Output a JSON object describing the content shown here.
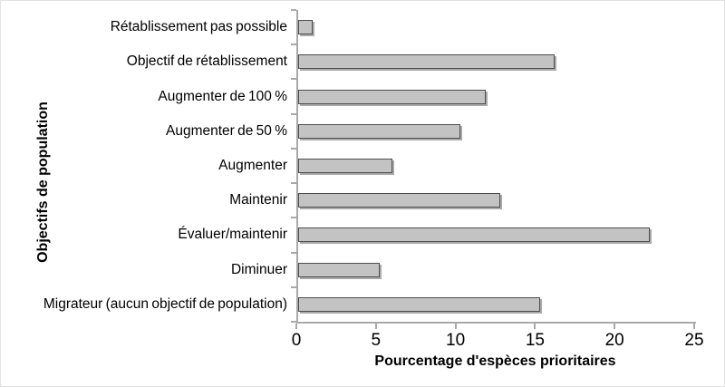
{
  "chart_data": {
    "type": "bar",
    "orientation": "horizontal",
    "title": "",
    "xlabel": "Pourcentage d'espèces prioritaires",
    "ylabel": "Objectifs de population",
    "categories": [
      "Rétablissement pas possible",
      "Objectif de rétablissement",
      "Augmenter de 100 %",
      "Augmenter de 50 %",
      "Augmenter",
      "Maintenir",
      "Évaluer/maintenir",
      "Diminuer",
      "Migrateur (aucun objectif de population)"
    ],
    "values": [
      0.9,
      16.1,
      11.8,
      10.2,
      5.9,
      12.7,
      22.1,
      5.1,
      15.2
    ],
    "xlim": [
      0,
      25
    ],
    "x_ticks": [
      "0",
      "5",
      "10",
      "15",
      "20",
      "25"
    ],
    "grid": false,
    "legend": false,
    "bar_fill": "#c3c3c3",
    "bar_border": "#4d4d4d",
    "axis_color": "#a9a9a9"
  }
}
